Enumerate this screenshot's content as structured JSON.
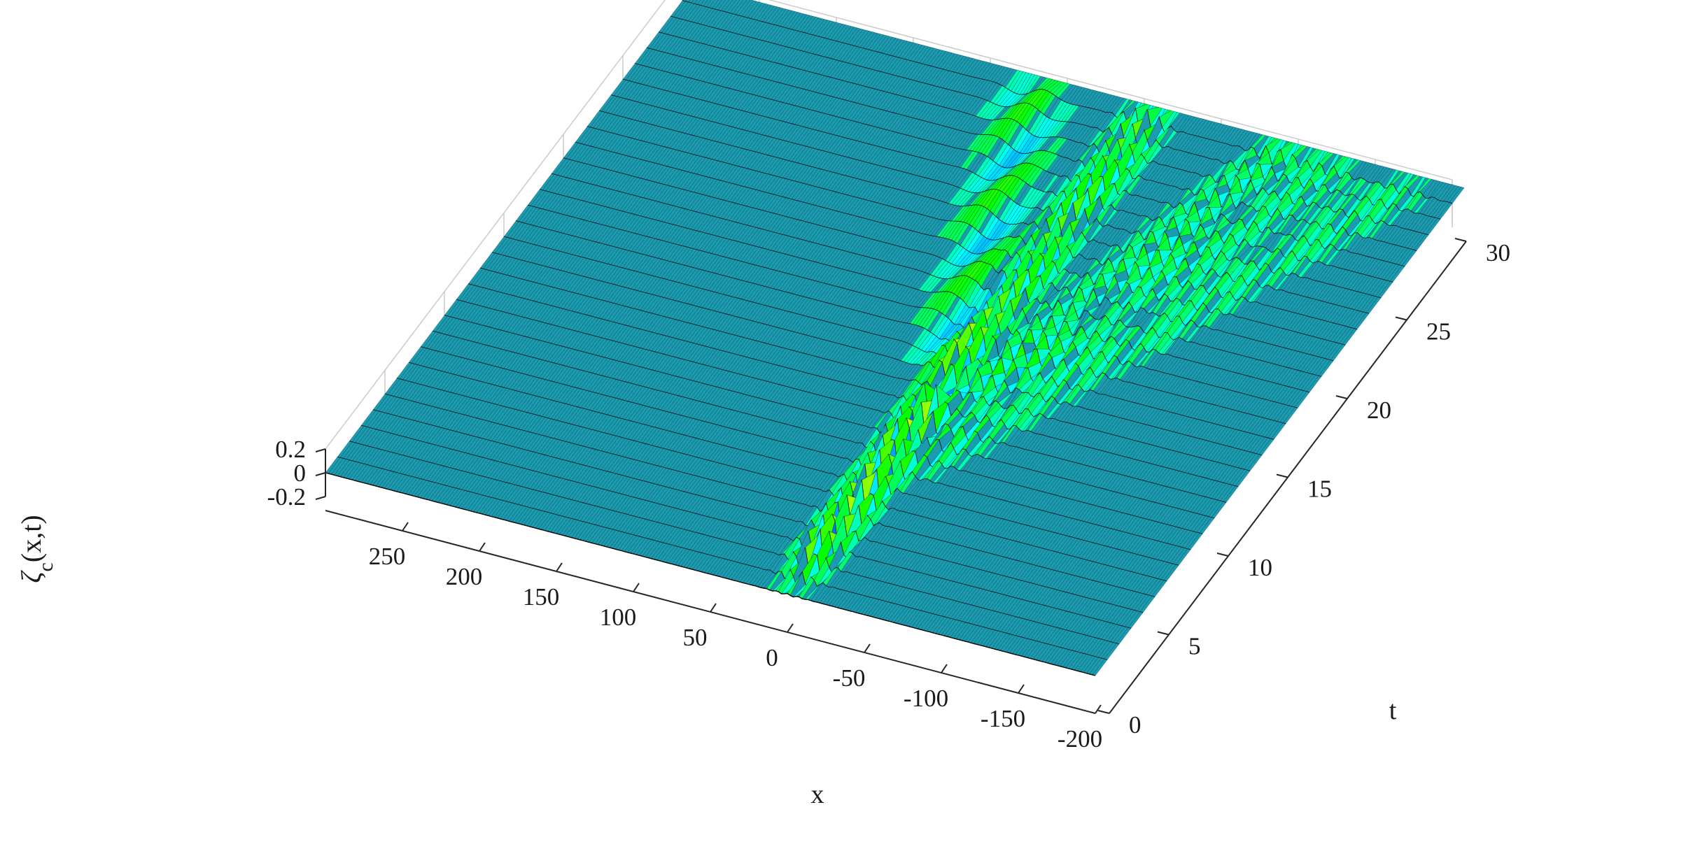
{
  "chart_data": {
    "type": "surface",
    "title": "",
    "xlabel": "x",
    "ylabel": "t",
    "zlabel": "ζc(x,t)",
    "zlabel_parts": {
      "symbol": "ζ",
      "subscript": "c",
      "args": "(x,t)"
    },
    "xlim": [
      -200,
      300
    ],
    "tlim": [
      0,
      30
    ],
    "zlim": [
      -0.2,
      0.2
    ],
    "x_ticks": [
      250,
      200,
      150,
      100,
      50,
      0,
      -50,
      -100,
      -150,
      -200
    ],
    "x_tick_labels": [
      "250",
      "200",
      "150",
      "100",
      "50",
      "0",
      "-50",
      "-100",
      "-150",
      "-200"
    ],
    "t_ticks": [
      0,
      5,
      10,
      15,
      20,
      25,
      30
    ],
    "t_tick_labels": [
      "0",
      "5",
      "10",
      "15",
      "20",
      "25",
      "30"
    ],
    "z_ticks": [
      -0.2,
      0,
      0.2
    ],
    "z_tick_labels": [
      "-0.2",
      "0",
      "0.2"
    ],
    "grid": true,
    "colormap": "hsv",
    "surface_base_color": "#1a9bb0",
    "time_slices": 31,
    "wave_packets": [
      {
        "name": "",
        "x0": 0,
        "speed_x_per_t": 0.0,
        "t_start": 0,
        "t_end": 12,
        "amplitude": 0.18,
        "width": 9,
        "wavenumber": 0.9
      },
      {
        "name": "",
        "x0": 0,
        "speed_x_per_t": 0.0,
        "t_start": 12,
        "t_end": 30,
        "amplitude": 0.12,
        "width": 10,
        "wavenumber": 0.8
      },
      {
        "name": "",
        "x0": 0,
        "speed_x_per_t": 4.0,
        "t_start": 12,
        "t_end": 30,
        "amplitude": 0.06,
        "width": 14,
        "wavenumber": 0.15
      },
      {
        "name": "",
        "x0": 0,
        "speed_x_per_t": -4.3,
        "t_start": 10,
        "t_end": 30,
        "amplitude": 0.08,
        "width": 12,
        "wavenumber": 0.7
      },
      {
        "name": "",
        "x0": 0,
        "speed_x_per_t": -5.5,
        "t_start": 8,
        "t_end": 30,
        "amplitude": 0.05,
        "width": 12,
        "wavenumber": 0.7
      },
      {
        "name": "",
        "x0": 0,
        "speed_x_per_t": -7.0,
        "t_start": 6,
        "t_end": 30,
        "amplitude": 0.04,
        "width": 12,
        "wavenumber": 0.7
      }
    ]
  }
}
